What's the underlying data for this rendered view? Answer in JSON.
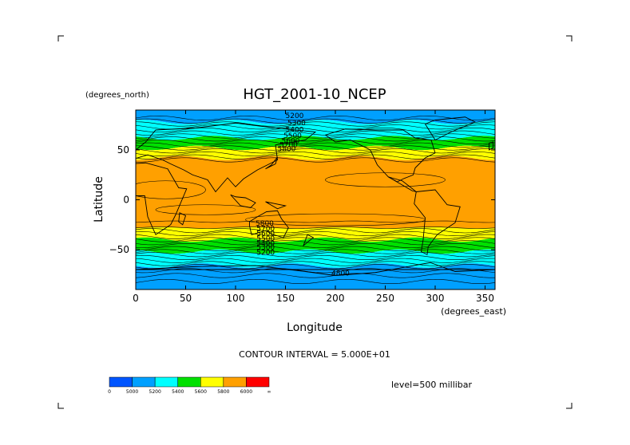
{
  "chart_data": {
    "type": "heatmap",
    "title": "HGT_2001-10_NCEP",
    "xlabel": "Longitude",
    "ylabel": "Latitude",
    "x_unit": "(degrees_east)",
    "y_unit": "(degrees_north)",
    "xlim": [
      0,
      360
    ],
    "ylim": [
      -90,
      90
    ],
    "x_ticks": [
      "0",
      "50",
      "100",
      "150",
      "200",
      "250",
      "300",
      "350"
    ],
    "y_ticks": [
      "50",
      "0",
      "-50"
    ],
    "contour_interval_text": "CONTOUR INTERVAL = 5.000E+01",
    "contour_interval": 50,
    "level_text": "level=500 millibar",
    "contour_labels": [
      "5200",
      "5300",
      "5400",
      "5500",
      "5600",
      "5700",
      "5800",
      "4800"
    ],
    "colorbar": {
      "colors": [
        "#0055ff",
        "#00a0ff",
        "#00ffff",
        "#00e000",
        "#ffff00",
        "#ffa000",
        "#ff0000"
      ],
      "labels": [
        "0",
        "5000",
        "5200",
        "5400",
        "5600",
        "5800",
        "6000",
        "∞"
      ]
    },
    "zonal_bands": [
      {
        "lat_from": 90,
        "lat_to": 78,
        "level": "5000-5200"
      },
      {
        "lat_from": 78,
        "lat_to": 62,
        "level": "5200-5400"
      },
      {
        "lat_from": 62,
        "lat_to": 52,
        "level": "5400-5600"
      },
      {
        "lat_from": 52,
        "lat_to": 42,
        "level": "5600-5800"
      },
      {
        "lat_from": 42,
        "lat_to": -28,
        "level": "5800-6000"
      },
      {
        "lat_from": -28,
        "lat_to": -40,
        "level": "5600-5800"
      },
      {
        "lat_from": -40,
        "lat_to": -52,
        "level": "5400-5600"
      },
      {
        "lat_from": -52,
        "lat_to": -66,
        "level": "5200-5400"
      },
      {
        "lat_from": -66,
        "lat_to": -90,
        "level": "5000-5200"
      }
    ]
  }
}
